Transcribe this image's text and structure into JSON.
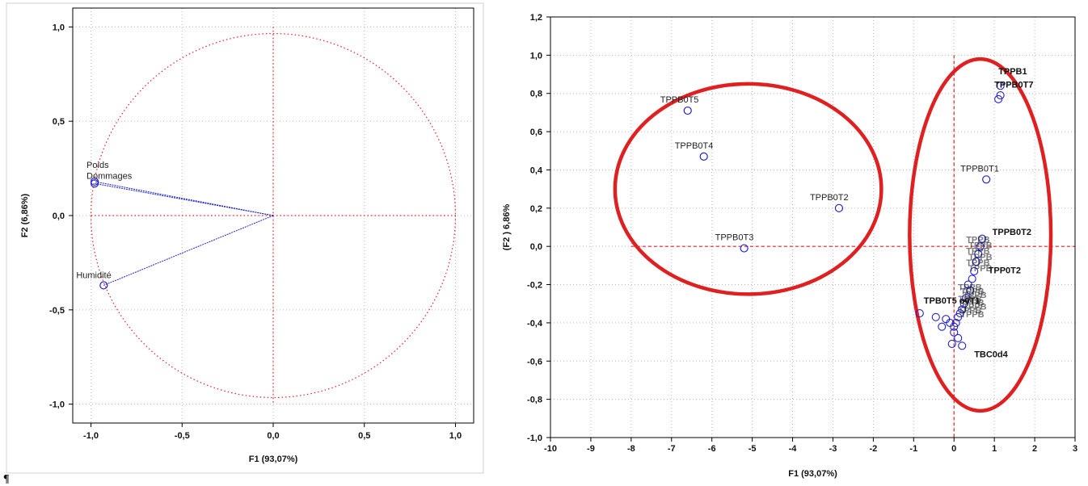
{
  "colors": {
    "axis_lines": "#e0222a",
    "markers": "#2222cc",
    "ellipse": "#e02020",
    "frame": "#000000"
  },
  "paragraph_mark": "¶",
  "chart_data": [
    {
      "type": "scatter",
      "subtype": "correlation-circle",
      "xlabel": "F1 (93,07%)",
      "ylabel": "F2 (6,86%)",
      "xlim": [
        -1.1,
        1.1
      ],
      "ylim": [
        -1.1,
        1.1
      ],
      "xticks": [
        "-1,0",
        "-0,5",
        "0,0",
        "0,5",
        "1,0"
      ],
      "yticks": [
        "1,0",
        "0,5",
        "0,0",
        "-0,5",
        "-1,0"
      ],
      "grid": true,
      "unit_circle": true,
      "points": [
        {
          "label": "Poids",
          "x": -0.98,
          "y": 0.18
        },
        {
          "label": "Dommages",
          "x": -0.98,
          "y": 0.17
        },
        {
          "label": "Humidité",
          "x": -0.93,
          "y": -0.37
        }
      ]
    },
    {
      "type": "scatter",
      "xlabel": "F1 (93,07%)",
      "ylabel": "(F2 ) 6,86%",
      "xlim": [
        -10,
        3
      ],
      "ylim": [
        -1.0,
        1.2
      ],
      "xticks": [
        "-10",
        "-9",
        "-8",
        "-7",
        "-6",
        "-5",
        "-4",
        "-3",
        "-2",
        "-1",
        "0",
        "1",
        "2",
        "3"
      ],
      "yticks": [
        "1,2",
        "1,0",
        "0,8",
        "0,6",
        "0,4",
        "0,2",
        "0,0",
        "-0,2",
        "-0,4",
        "-0,6",
        "-0,8",
        "-1,0"
      ],
      "grid": true,
      "labeled_points": [
        {
          "label": "TPPB0T5",
          "x": -6.6,
          "y": 0.71
        },
        {
          "label": "TPPB0T4",
          "x": -6.2,
          "y": 0.47
        },
        {
          "label": "TPPB0T2",
          "x": -2.85,
          "y": 0.2
        },
        {
          "label": "TPPB0T3",
          "x": -5.2,
          "y": -0.01
        },
        {
          "label": "TPPB0T1",
          "x": 0.8,
          "y": 0.35
        }
      ],
      "cluster_points": [
        {
          "x": 1.15,
          "y": 0.84
        },
        {
          "x": 1.1,
          "y": 0.77
        },
        {
          "x": 1.15,
          "y": 0.79
        },
        {
          "x": 0.7,
          "y": 0.04
        },
        {
          "x": 0.65,
          "y": 0.0
        },
        {
          "x": 0.6,
          "y": -0.04
        },
        {
          "x": 0.55,
          "y": -0.08
        },
        {
          "x": 0.5,
          "y": -0.13
        },
        {
          "x": 0.45,
          "y": -0.17
        },
        {
          "x": 0.35,
          "y": -0.2
        },
        {
          "x": 0.4,
          "y": -0.23
        },
        {
          "x": 0.3,
          "y": -0.27
        },
        {
          "x": 0.25,
          "y": -0.3
        },
        {
          "x": 0.2,
          "y": -0.33
        },
        {
          "x": 0.15,
          "y": -0.35
        },
        {
          "x": 0.1,
          "y": -0.37
        },
        {
          "x": 0.05,
          "y": -0.4
        },
        {
          "x": 0.0,
          "y": -0.42
        },
        {
          "x": -0.1,
          "y": -0.4
        },
        {
          "x": -0.2,
          "y": -0.38
        },
        {
          "x": -0.3,
          "y": -0.42
        },
        {
          "x": -0.45,
          "y": -0.37
        },
        {
          "x": -0.85,
          "y": -0.35
        },
        {
          "x": 0.1,
          "y": -0.48
        },
        {
          "x": -0.05,
          "y": -0.51
        },
        {
          "x": 0.2,
          "y": -0.52
        },
        {
          "x": 0.0,
          "y": -0.45
        }
      ],
      "cluster_labels": [
        {
          "text": "TPPB1",
          "x": 1.1,
          "y": 0.9
        },
        {
          "text": "TPPB0T7",
          "x": 1.0,
          "y": 0.83
        },
        {
          "text": "TPPB0T2",
          "x": 0.95,
          "y": 0.06
        },
        {
          "text": "TPP0T2",
          "x": 0.85,
          "y": -0.14
        },
        {
          "text": "TPB0T5 o0T1",
          "x": -0.75,
          "y": -0.3
        },
        {
          "text": "TBC0d4",
          "x": 0.5,
          "y": -0.58
        }
      ],
      "ellipses": [
        {
          "cx": -5.1,
          "cy": 0.3,
          "rx": 3.3,
          "ry": 0.55
        },
        {
          "cx": 0.65,
          "cy": 0.06,
          "rx": 1.75,
          "ry": 0.92
        }
      ]
    }
  ]
}
